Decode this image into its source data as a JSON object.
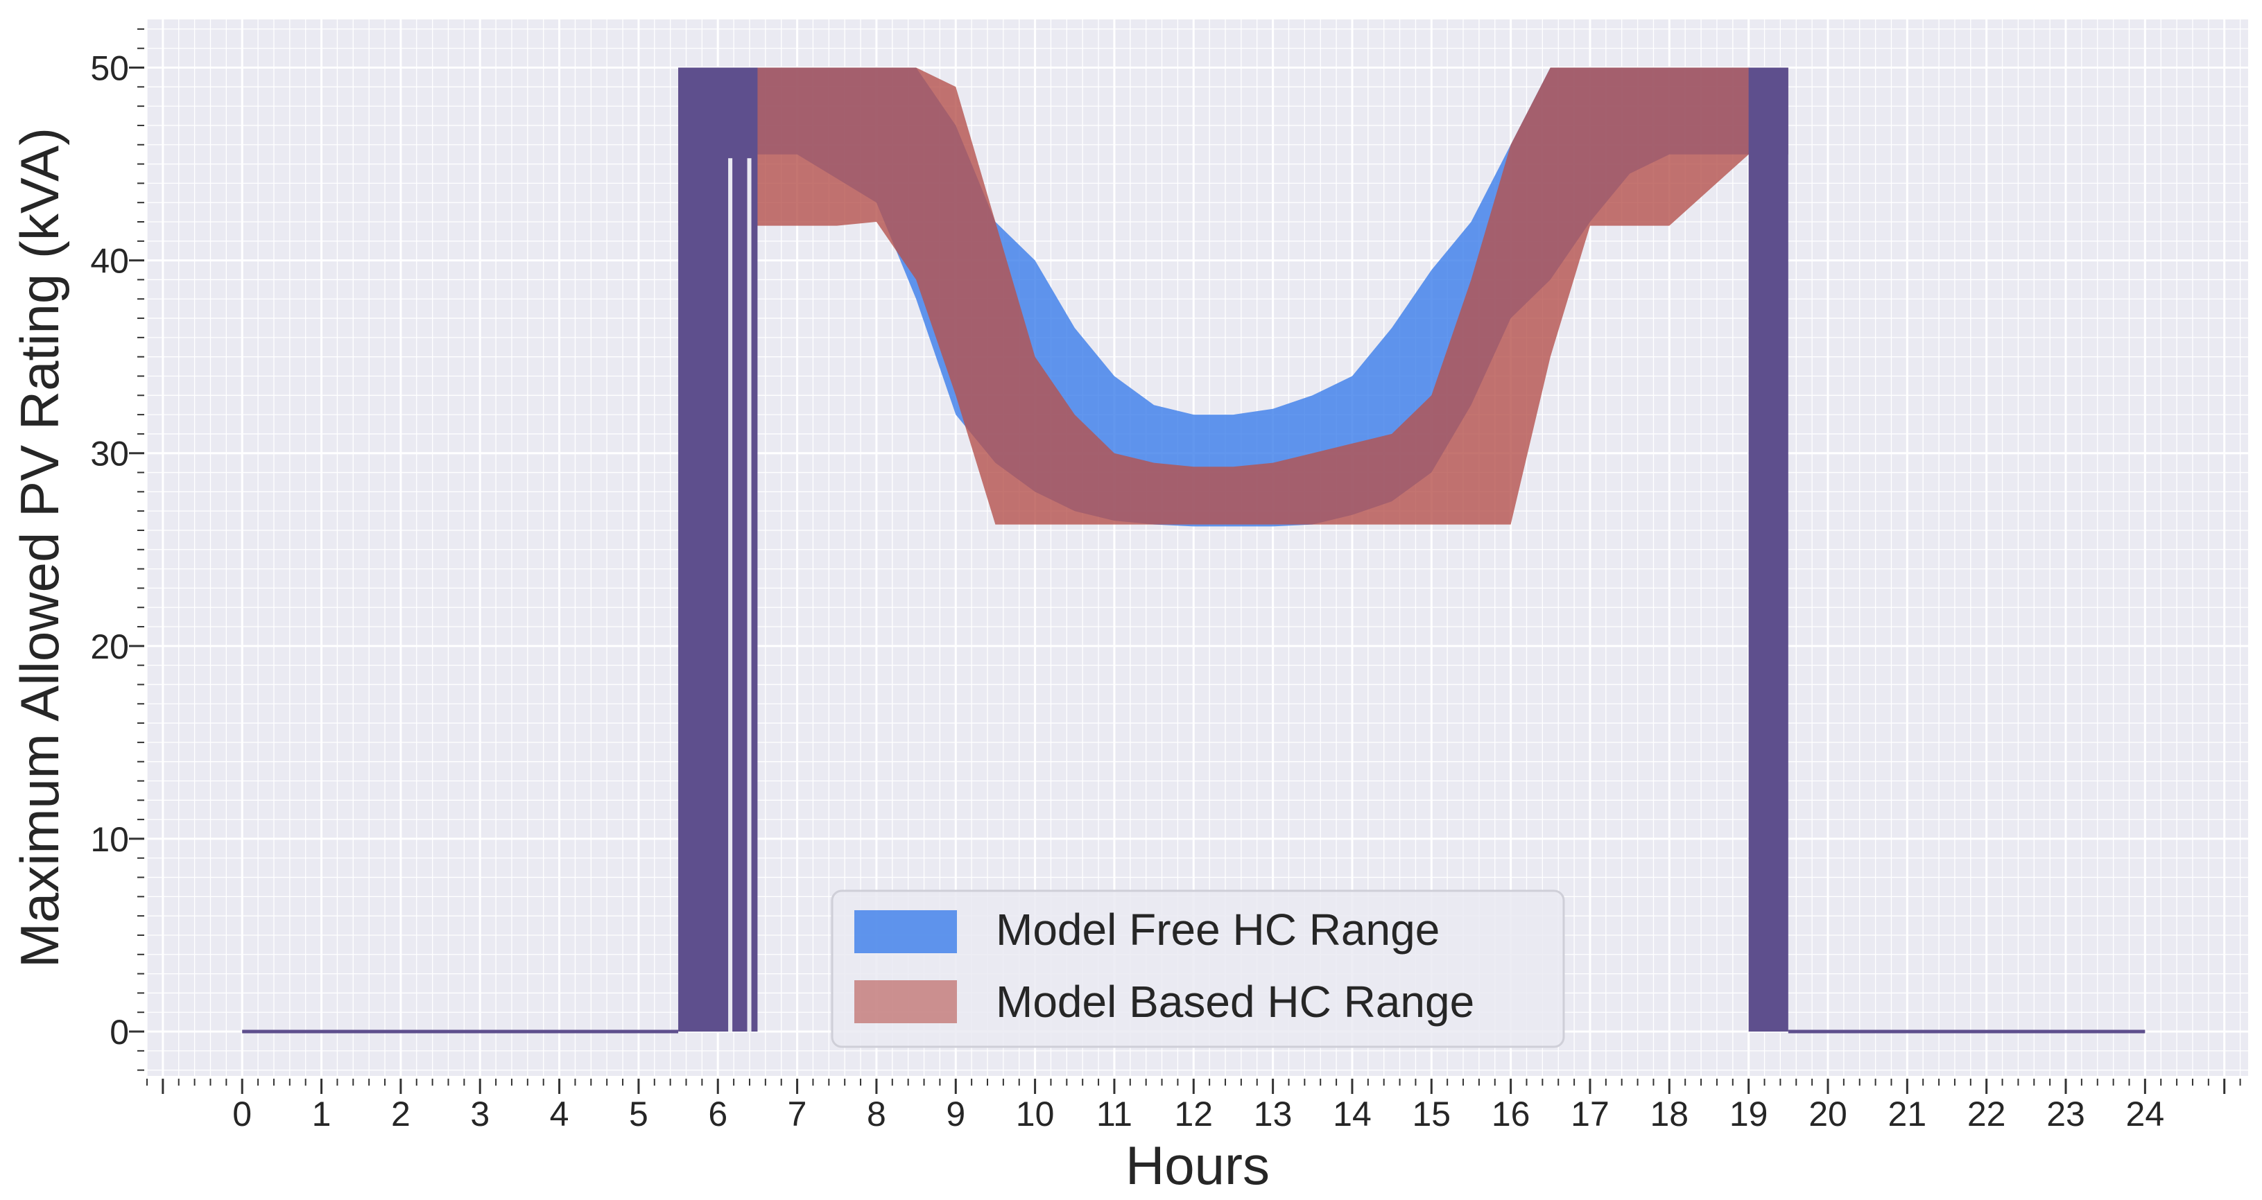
{
  "chart_data": {
    "type": "area",
    "title": "",
    "xlabel": "Hours",
    "ylabel": "Maximum Allowed PV Rating (kVA)",
    "xlim": [
      -1.2,
      25.3
    ],
    "ylim": [
      -2.3,
      52.5
    ],
    "xticks": [
      0,
      1,
      2,
      3,
      4,
      5,
      6,
      7,
      8,
      9,
      10,
      11,
      12,
      13,
      14,
      15,
      16,
      17,
      18,
      19,
      20,
      21,
      22,
      23,
      24
    ],
    "yticks": [
      0,
      10,
      20,
      30,
      40,
      50
    ],
    "grid": true,
    "legend_position": "lower-center",
    "series": [
      {
        "name": "Model Free HC Range",
        "color": "#3b7dea",
        "x": [
          0,
          5.5,
          5.5,
          7.0,
          8.0,
          8.5,
          9.0,
          9.5,
          10.0,
          10.5,
          11.0,
          11.5,
          12.0,
          12.5,
          13.0,
          13.5,
          14.0,
          14.5,
          15.0,
          15.5,
          16.0,
          16.5,
          17.0,
          17.5,
          18.0,
          19.0,
          19.5,
          19.5,
          24
        ],
        "lower": [
          0,
          0,
          45.5,
          45.5,
          43.0,
          38.0,
          32.0,
          29.5,
          28.0,
          27.0,
          26.5,
          26.3,
          26.2,
          26.2,
          26.2,
          26.3,
          26.8,
          27.5,
          29.0,
          32.5,
          37.0,
          39.0,
          42.0,
          44.5,
          45.5,
          45.5,
          45.5,
          0,
          0
        ],
        "upper": [
          0,
          0,
          50.0,
          50.0,
          50.0,
          50.0,
          47.0,
          42.0,
          40.0,
          36.5,
          34.0,
          32.5,
          32.0,
          32.0,
          32.3,
          33.0,
          34.0,
          36.5,
          39.5,
          42.0,
          46.0,
          50.0,
          50.0,
          50.0,
          50.0,
          50.0,
          50.0,
          0,
          0
        ]
      },
      {
        "name": "Model Based HC Range",
        "color": "#b5524d",
        "x": [
          0,
          5.5,
          5.5,
          6.5,
          7.5,
          8.0,
          8.5,
          9.0,
          9.5,
          10.0,
          10.5,
          11.0,
          11.5,
          12.0,
          12.5,
          13.0,
          13.5,
          14.0,
          14.5,
          15.0,
          15.5,
          16.0,
          16.5,
          17.0,
          17.5,
          18.0,
          19.0,
          19.5,
          19.5,
          24
        ],
        "lower": [
          0,
          0,
          41.8,
          41.8,
          41.8,
          42.0,
          39.0,
          33.0,
          26.3,
          26.3,
          26.3,
          26.3,
          26.3,
          26.3,
          26.3,
          26.3,
          26.3,
          26.3,
          26.3,
          26.3,
          26.3,
          26.3,
          35.0,
          41.8,
          41.8,
          41.8,
          45.5,
          45.5,
          0,
          0
        ],
        "upper": [
          0,
          0,
          50.0,
          50.0,
          50.0,
          50.0,
          50.0,
          49.0,
          42.0,
          35.0,
          32.0,
          30.0,
          29.5,
          29.3,
          29.3,
          29.5,
          30.0,
          30.5,
          31.0,
          33.0,
          39.0,
          46.0,
          50.0,
          50.0,
          50.0,
          50.0,
          50.0,
          50.0,
          0,
          0
        ]
      }
    ],
    "overlap_color": "#5e4f8d"
  }
}
